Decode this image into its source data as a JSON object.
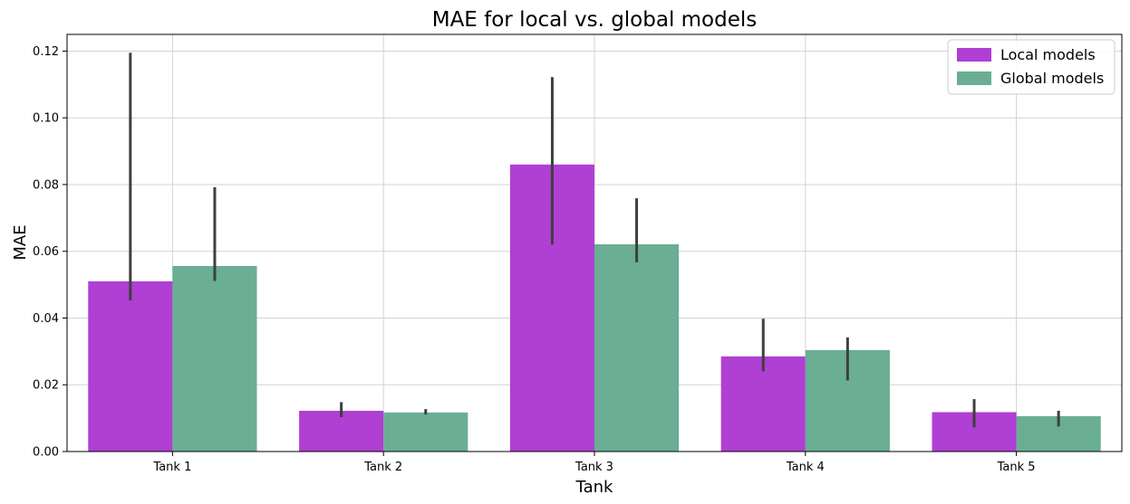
{
  "chart_data": {
    "type": "bar",
    "title": "MAE for local vs. global models",
    "xlabel": "Tank",
    "ylabel": "MAE",
    "categories": [
      "Tank 1",
      "Tank 2",
      "Tank 3",
      "Tank 4",
      "Tank 5"
    ],
    "ylim": [
      0,
      0.125
    ],
    "yticks": [
      0.0,
      0.02,
      0.04,
      0.06,
      0.08,
      0.1,
      0.12
    ],
    "ytick_labels": [
      "0.00",
      "0.02",
      "0.04",
      "0.06",
      "0.08",
      "0.10",
      "0.12"
    ],
    "grid": true,
    "legend_position": "top-right",
    "series": [
      {
        "name": "Local models",
        "color": "#b03fd3",
        "values": [
          0.051,
          0.0122,
          0.086,
          0.0285,
          0.0118
        ],
        "error_low": [
          0.0453,
          0.0103,
          0.062,
          0.024,
          0.0072
        ],
        "error_high": [
          0.1195,
          0.0148,
          0.1122,
          0.0398,
          0.0157
        ]
      },
      {
        "name": "Global models",
        "color": "#6aae94",
        "values": [
          0.0556,
          0.0117,
          0.0621,
          0.0304,
          0.0106
        ],
        "error_low": [
          0.0511,
          0.0111,
          0.0567,
          0.0213,
          0.0075
        ],
        "error_high": [
          0.0792,
          0.0127,
          0.0759,
          0.0342,
          0.0122
        ]
      }
    ]
  }
}
